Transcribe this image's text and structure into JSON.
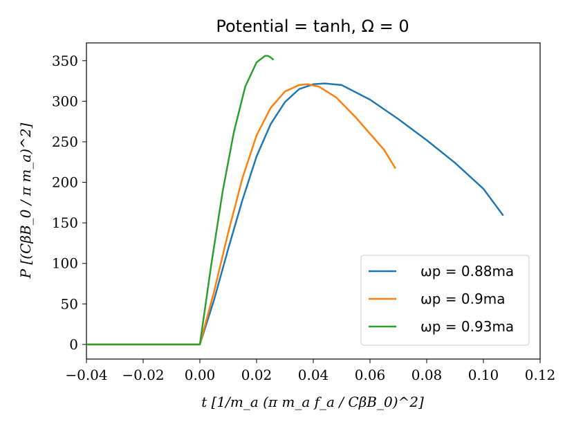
{
  "chart_data": {
    "type": "line",
    "title": "Potential = tanh, Ω = 0",
    "xlabel": "t [1/m_a (π m_a f_a / CβB_0)^2]",
    "ylabel": "P [(CβB_0 / π m_a)^2]",
    "xlim": [
      -0.04,
      0.12
    ],
    "ylim": [
      -18,
      372
    ],
    "xticks": [
      -0.04,
      -0.02,
      0.0,
      0.02,
      0.04,
      0.06,
      0.08,
      0.1,
      0.12
    ],
    "xtick_labels": [
      "−0.04",
      "−0.02",
      "0.00",
      "0.02",
      "0.04",
      "0.06",
      "0.08",
      "0.10",
      "0.12"
    ],
    "yticks": [
      0,
      50,
      100,
      150,
      200,
      250,
      300,
      350
    ],
    "ytick_labels": [
      "0",
      "50",
      "100",
      "150",
      "200",
      "250",
      "300",
      "350"
    ],
    "grid": false,
    "legend_position": "lower-right",
    "series": [
      {
        "name": "ωp = 0.88ma",
        "color": "#1f77b4",
        "x": [
          -0.04,
          0.0,
          0.005,
          0.01,
          0.015,
          0.02,
          0.025,
          0.03,
          0.035,
          0.04,
          0.044,
          0.05,
          0.06,
          0.07,
          0.08,
          0.09,
          0.1,
          0.107
        ],
        "y": [
          0,
          0,
          55,
          118,
          178,
          232,
          272,
          299,
          315,
          321,
          322,
          320,
          302,
          278,
          252,
          224,
          192,
          159
        ]
      },
      {
        "name": "ωp = 0.9ma",
        "color": "#ff7f0e",
        "x": [
          -0.04,
          0.0,
          0.005,
          0.01,
          0.015,
          0.02,
          0.025,
          0.03,
          0.035,
          0.038,
          0.042,
          0.048,
          0.055,
          0.06,
          0.065,
          0.069
        ],
        "y": [
          0,
          0,
          65,
          138,
          205,
          258,
          292,
          312,
          320,
          321,
          318,
          305,
          280,
          260,
          240,
          217
        ]
      },
      {
        "name": "ωp = 0.93ma",
        "color": "#2ca02c",
        "x": [
          -0.04,
          0.0,
          0.004,
          0.008,
          0.012,
          0.016,
          0.02,
          0.023,
          0.024,
          0.025,
          0.026
        ],
        "y": [
          0,
          0,
          98,
          188,
          262,
          318,
          348,
          356,
          356,
          354,
          351
        ]
      }
    ]
  }
}
